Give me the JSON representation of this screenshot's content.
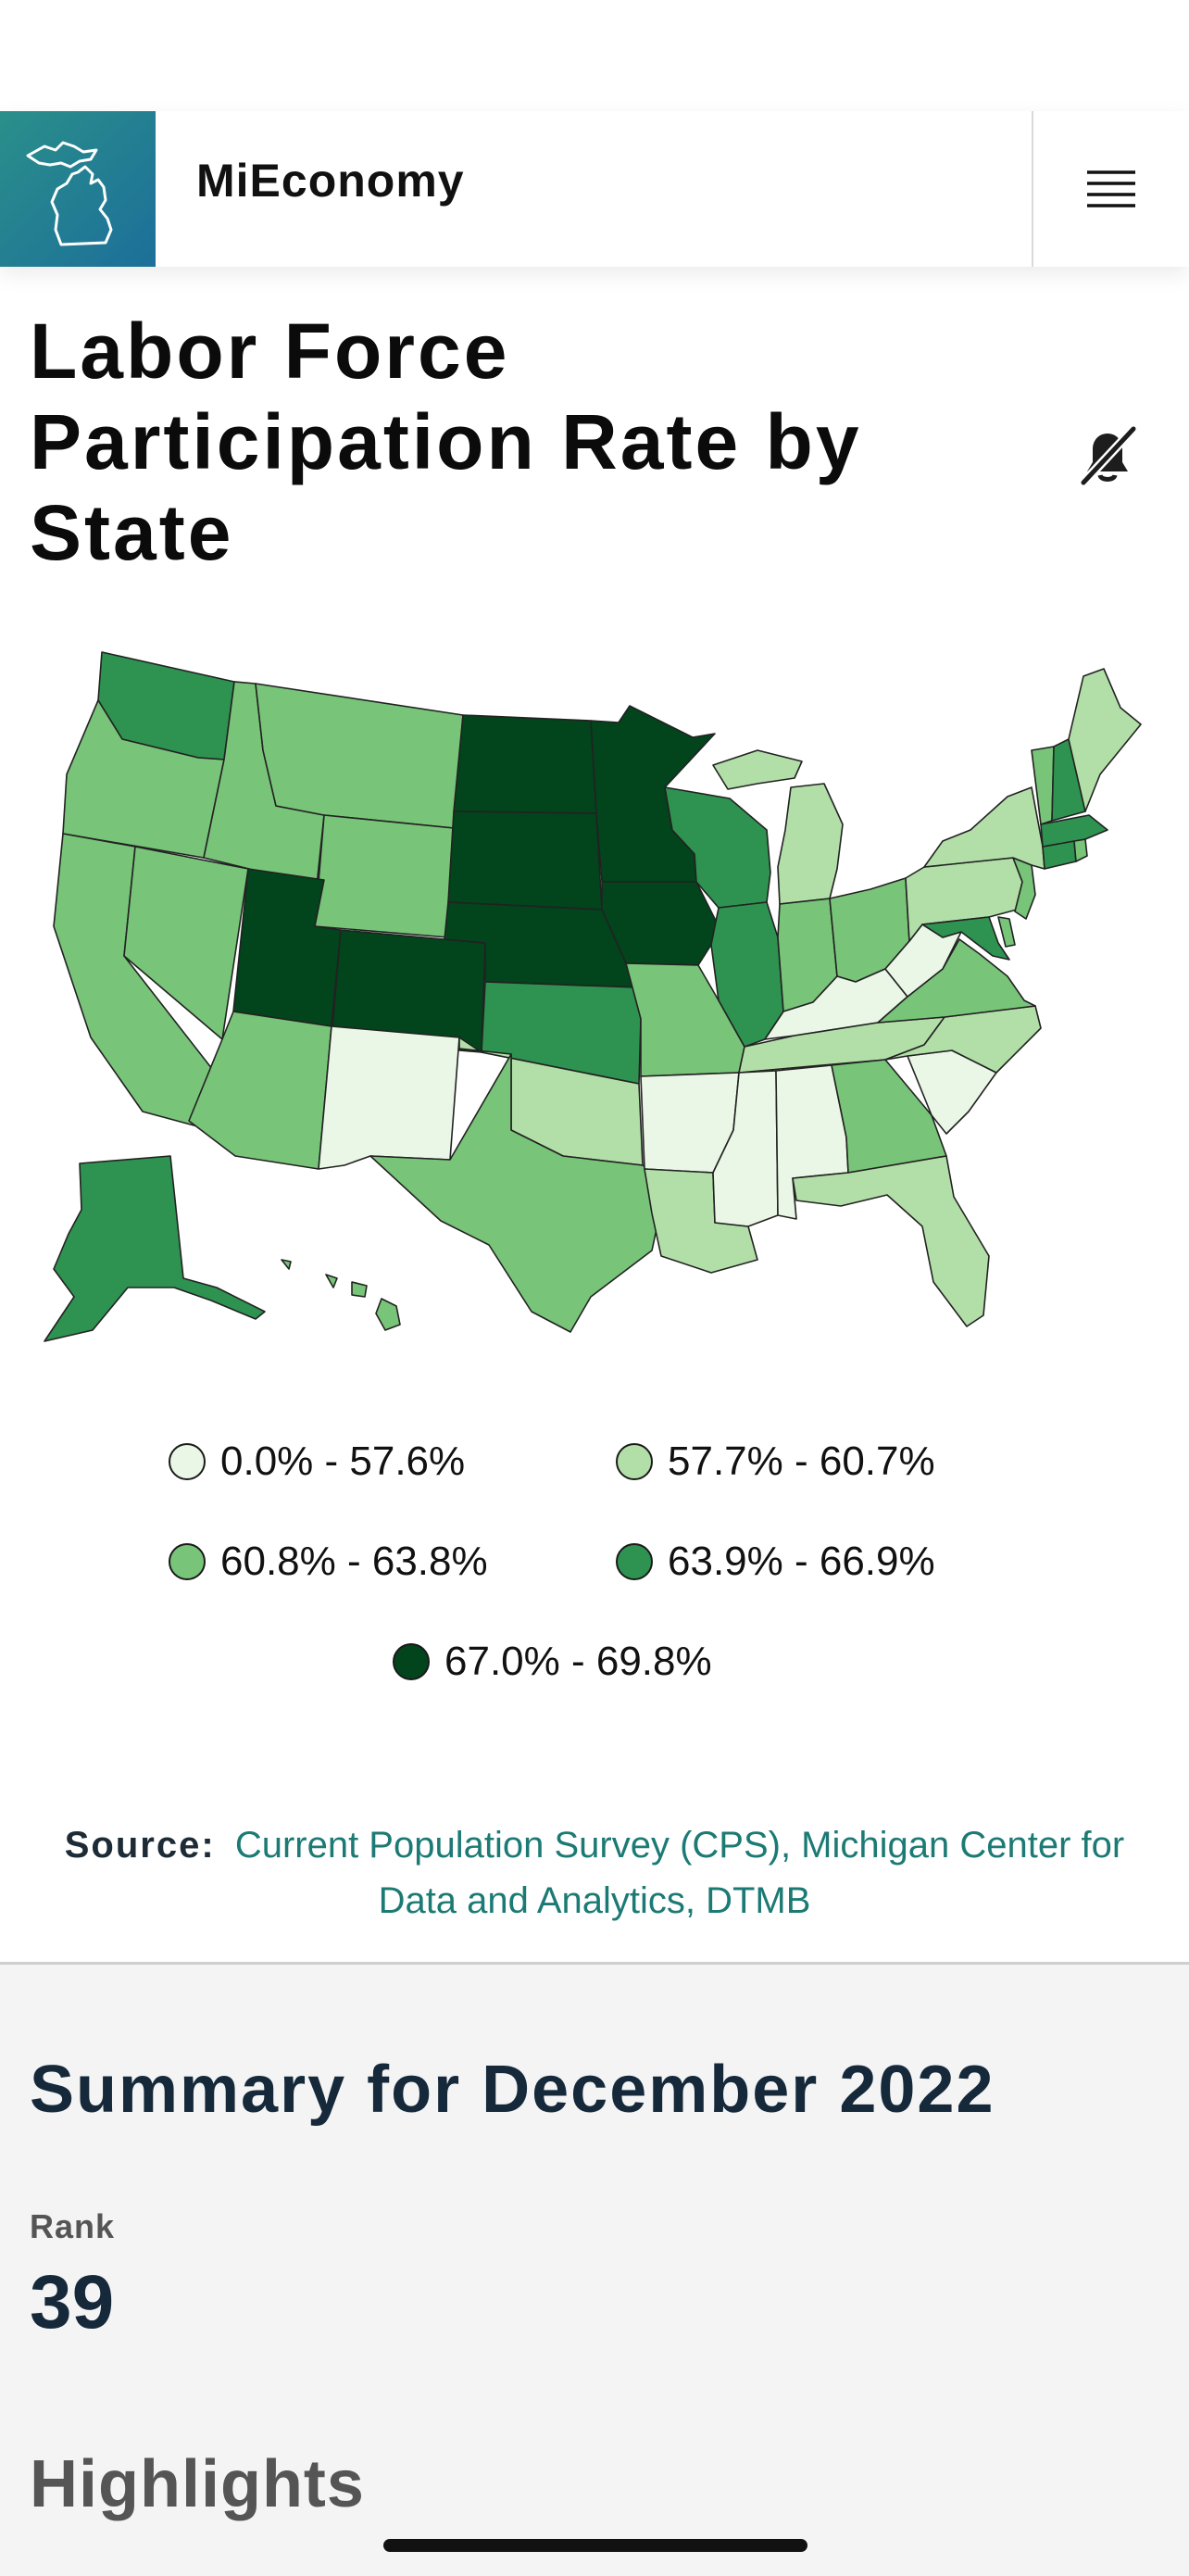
{
  "header": {
    "app_title": "MiEconomy",
    "logo_icon": "michigan-icon",
    "menu_icon": "hamburger-icon"
  },
  "page": {
    "title": "Labor Force Participation Rate by State",
    "mute_icon": "bell-off-icon"
  },
  "map": {
    "type": "choropleth",
    "colors": {
      "b1": "#eaf6e6",
      "b2": "#b2dfa8",
      "b3": "#78c479",
      "b4": "#2e9250",
      "b5": "#02441b"
    },
    "legend": [
      {
        "bin": "b1",
        "label": "0.0% - 57.6%"
      },
      {
        "bin": "b2",
        "label": "57.7% - 60.7%"
      },
      {
        "bin": "b3",
        "label": "60.8% - 63.8%"
      },
      {
        "bin": "b4",
        "label": "63.9% - 66.9%"
      },
      {
        "bin": "b5",
        "label": "67.0% - 69.8%"
      }
    ]
  },
  "source": {
    "label": "Source:",
    "text": "Current Population Survey (CPS), Michigan Center for Data and Analytics, DTMB"
  },
  "summary": {
    "title": "Summary for December 2022",
    "rank_label": "Rank",
    "rank_value": "39",
    "highlights_title": "Highlights"
  }
}
